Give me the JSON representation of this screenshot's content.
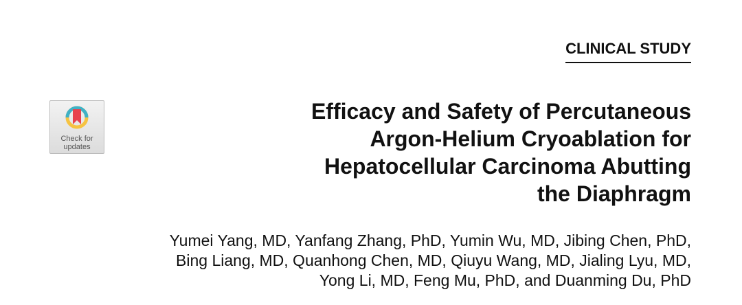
{
  "section": "CLINICAL STUDY",
  "badge": {
    "line1": "Check for",
    "line2": "updates",
    "icon": "check-for-updates-logo"
  },
  "title": [
    "Efficacy and Safety of Percutaneous",
    "Argon-Helium Cryoablation for",
    "Hepatocellular Carcinoma Abutting",
    "the Diaphragm"
  ],
  "authors": [
    "Yumei Yang, MD, Yanfang Zhang, PhD, Yumin Wu, MD, Jibing Chen, PhD,",
    "Bing Liang, MD, Quanhong Chen, MD, Qiuyu Wang, MD, Jialing Lyu, MD,",
    "Yong Li, MD, Feng Mu, PhD, and Duanming Du, PhD"
  ]
}
